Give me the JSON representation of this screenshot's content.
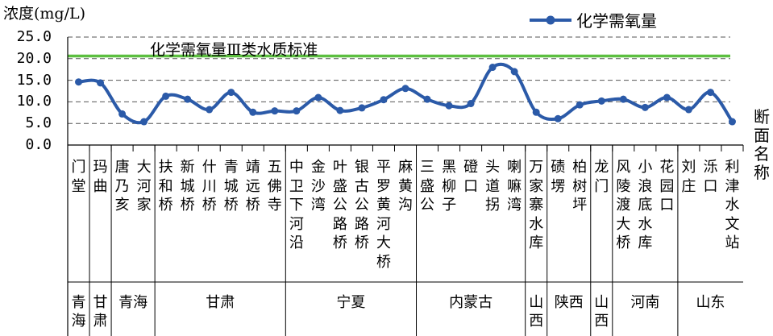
{
  "chart_data": {
    "type": "line",
    "ylabel": "浓度(mg/L)",
    "xlabel": "断面名称",
    "ylim": [
      0,
      25
    ],
    "yticks": [
      "25.0",
      "20.0",
      "15.0",
      "10.0",
      "5.0",
      "0.0"
    ],
    "grid": "dashed horizontal",
    "legend_position": "top-right",
    "series": [
      {
        "name": "化学需氧量",
        "color": "#2b5aa8",
        "values": [
          14.6,
          14.4,
          7.2,
          5.4,
          11.3,
          10.6,
          8.2,
          12.2,
          7.6,
          7.9,
          7.9,
          11.0,
          8.0,
          8.6,
          10.5,
          13.1,
          10.6,
          9.1,
          9.6,
          18.0,
          17.0,
          7.6,
          6.1,
          9.3,
          10.2,
          10.6,
          8.7,
          11.0,
          8.2,
          12.2,
          5.4
        ]
      }
    ],
    "standard_line": {
      "label": "化学需氧量Ⅲ类水质标准",
      "value": 20.5,
      "color": "#5cbf40"
    },
    "categories": [
      "门堂",
      "玛曲",
      "唐乃亥",
      "大河家",
      "扶和桥",
      "新城桥",
      "什川桥",
      "青城桥",
      "靖远桥",
      "五佛寺",
      "中卫下河沿",
      "金沙湾",
      "叶盛公路桥",
      "银古公路桥",
      "平罗黄河大桥",
      "麻黄沟",
      "三盛公",
      "黑柳子",
      "磴口",
      "头道拐",
      "喇嘛湾",
      "万家寨水库",
      "碛塄",
      "柏树坪",
      "龙门",
      "风陵渡大桥",
      "小浪底水库",
      "花园口",
      "刘庄",
      "泺口",
      "利津水文站"
    ],
    "provinces": [
      {
        "name": "青海",
        "span": 1
      },
      {
        "name": "甘肃",
        "span": 1
      },
      {
        "name": "青海",
        "span": 2
      },
      {
        "name": "甘肃",
        "span": 6
      },
      {
        "name": "宁夏",
        "span": 6
      },
      {
        "name": "内蒙古",
        "span": 5
      },
      {
        "name": "山西",
        "span": 1
      },
      {
        "name": "陕西",
        "span": 2
      },
      {
        "name": "山西",
        "span": 1
      },
      {
        "name": "河南",
        "span": 3
      },
      {
        "name": "山东",
        "span": 3
      }
    ]
  }
}
